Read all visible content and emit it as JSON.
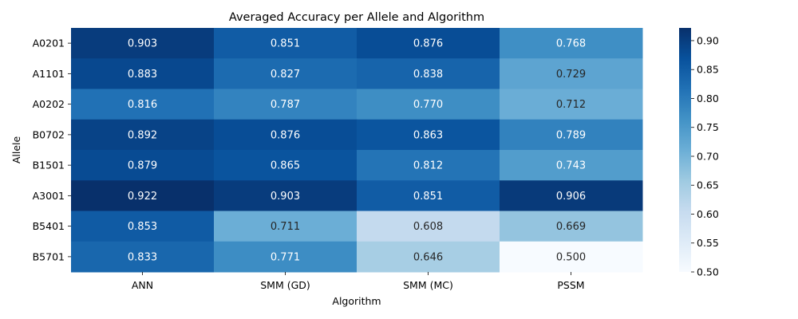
{
  "chart_data": {
    "type": "heatmap",
    "title": "Averaged Accuracy per Allele and Algorithm",
    "xlabel": "Algorithm",
    "ylabel": "Allele",
    "x_categories": [
      "ANN",
      "SMM (GD)",
      "SMM (MC)",
      "PSSM"
    ],
    "y_categories": [
      "A0201",
      "A1101",
      "A0202",
      "B0702",
      "B1501",
      "A3001",
      "B5401",
      "B5701"
    ],
    "values": [
      [
        0.903,
        0.851,
        0.876,
        0.768
      ],
      [
        0.883,
        0.827,
        0.838,
        0.729
      ],
      [
        0.816,
        0.787,
        0.77,
        0.712
      ],
      [
        0.892,
        0.876,
        0.863,
        0.789
      ],
      [
        0.879,
        0.865,
        0.812,
        0.743
      ],
      [
        0.922,
        0.903,
        0.851,
        0.906
      ],
      [
        0.853,
        0.711,
        0.608,
        0.669
      ],
      [
        0.833,
        0.771,
        0.646,
        0.5
      ]
    ],
    "cell_labels": [
      [
        "0.903",
        "0.851",
        "0.876",
        "0.768"
      ],
      [
        "0.883",
        "0.827",
        "0.838",
        "0.729"
      ],
      [
        "0.816",
        "0.787",
        "0.770",
        "0.712"
      ],
      [
        "0.892",
        "0.876",
        "0.863",
        "0.789"
      ],
      [
        "0.879",
        "0.865",
        "0.812",
        "0.743"
      ],
      [
        "0.922",
        "0.903",
        "0.851",
        "0.906"
      ],
      [
        "0.853",
        "0.711",
        "0.608",
        "0.669"
      ],
      [
        "0.833",
        "0.771",
        "0.646",
        "0.500"
      ]
    ],
    "colorbar": {
      "colormap": "Blues",
      "vmin": 0.5,
      "vmax": 0.922,
      "ticks": [
        0.5,
        0.55,
        0.6,
        0.65,
        0.7,
        0.75,
        0.8,
        0.85,
        0.9
      ],
      "tick_labels": [
        "0.50",
        "0.55",
        "0.60",
        "0.65",
        "0.70",
        "0.75",
        "0.80",
        "0.85",
        "0.90"
      ]
    }
  }
}
